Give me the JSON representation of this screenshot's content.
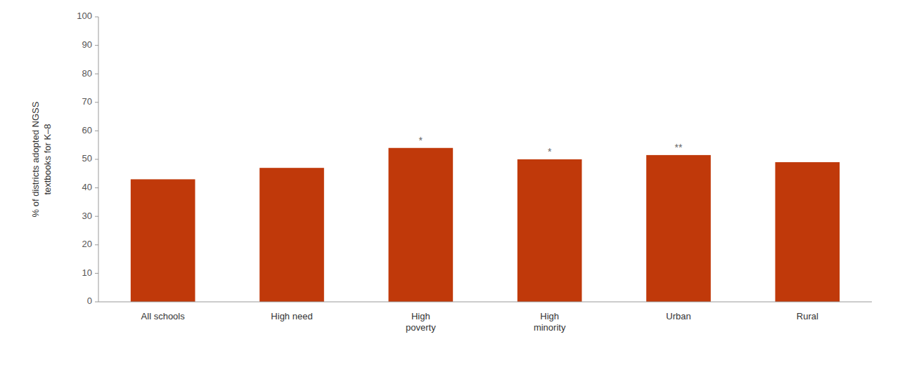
{
  "chart_data": {
    "type": "bar",
    "categories": [
      "All schools",
      "High need",
      "High\npoverty",
      "High\nminority",
      "Urban",
      "Rural"
    ],
    "values": [
      43,
      47,
      54,
      50,
      51.5,
      49
    ],
    "color": "#C0390A",
    "ylabel": "% of districts adopted NGSS\ntextbooks for K–8",
    "ylim": [
      0,
      100
    ],
    "yticks": [
      0,
      10,
      20,
      30,
      40,
      50,
      60,
      70,
      80,
      90,
      100
    ],
    "grid": false,
    "annotations": [
      {
        "index": 2,
        "text": "*"
      },
      {
        "index": 3,
        "text": "*"
      },
      {
        "index": 4,
        "text": "**"
      }
    ]
  }
}
